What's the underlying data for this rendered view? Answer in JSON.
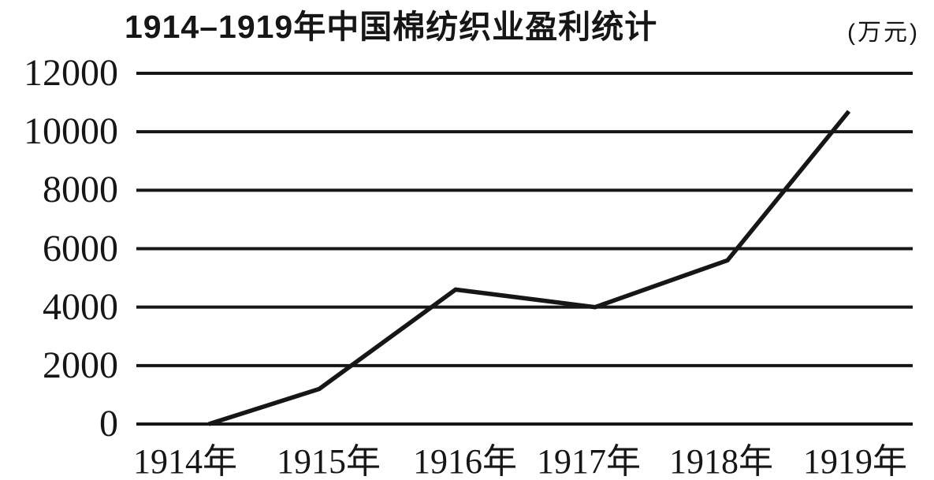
{
  "header": {
    "title": "1914–1919年中国棉纺织业盈利统计",
    "unit_label": "(万元)"
  },
  "chart_data": {
    "type": "line",
    "title": "1914–1919年中国棉纺织业盈利统计",
    "unit": "万元",
    "categories": [
      "1914年",
      "1915年",
      "1916年",
      "1917年",
      "1918年",
      "1919年"
    ],
    "series": [
      {
        "name": "中国棉纺织业盈利",
        "values": [
          0,
          1200,
          4600,
          4000,
          5600,
          10700
        ]
      }
    ],
    "xlabel": "",
    "ylabel": "(万元)",
    "ylim": [
      0,
      12000
    ],
    "yticks": [
      0,
      2000,
      4000,
      6000,
      8000,
      10000,
      12000
    ],
    "ytick_labels": [
      "0",
      "2000",
      "4000",
      "6000",
      "8000",
      "10000",
      "12000"
    ],
    "grid": "horizontal",
    "legend": "none",
    "line_color": "#161616",
    "grid_color": "#161616",
    "background_color": "#ffffff"
  }
}
